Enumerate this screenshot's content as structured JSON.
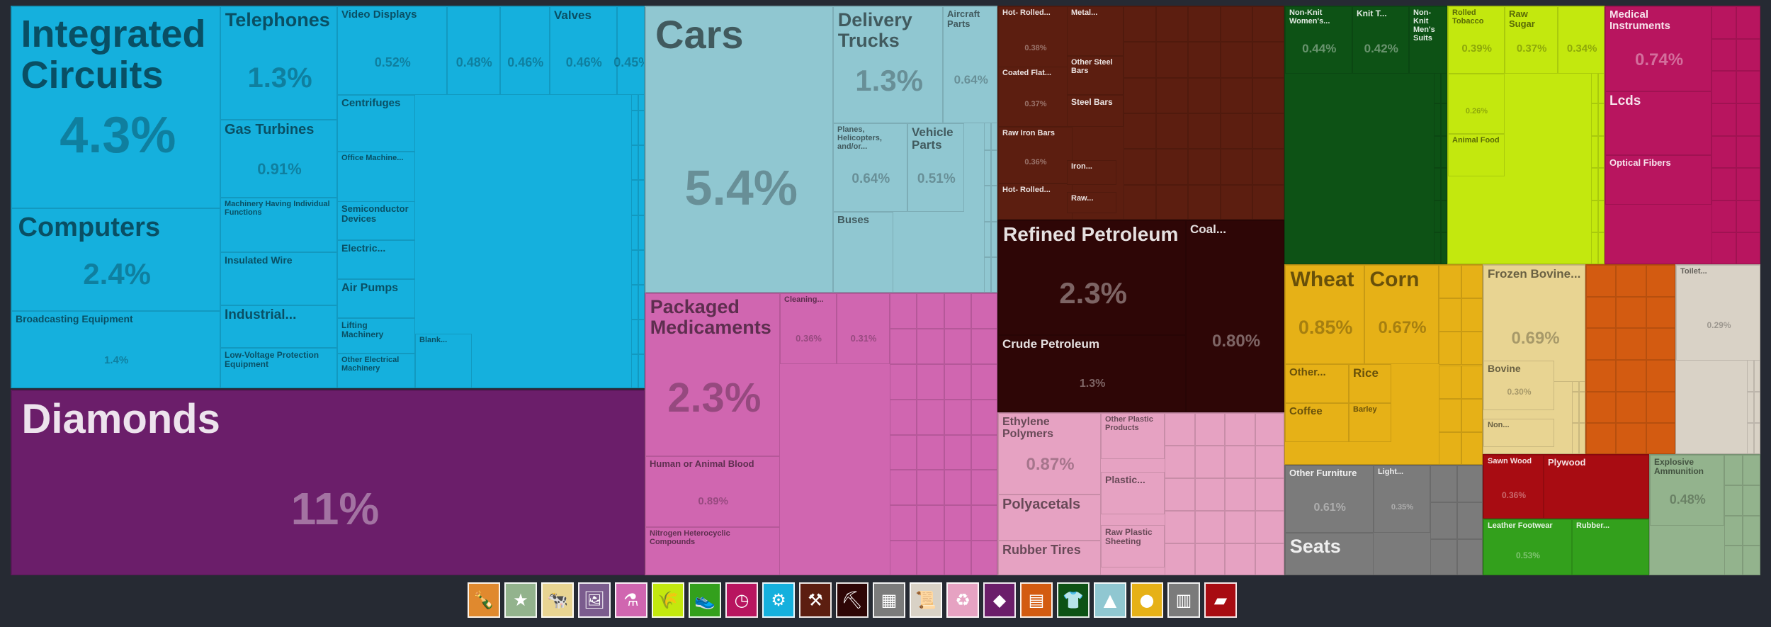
{
  "chart_data": {
    "type": "treemap",
    "sectors": [
      {
        "name": "Machines",
        "color": "#15b0dd",
        "items": [
          {
            "label": "Integrated Circuits",
            "pct": "4.3%"
          },
          {
            "label": "Computers",
            "pct": "2.4%"
          },
          {
            "label": "Broadcasting Equipment",
            "pct": "1.4%"
          },
          {
            "label": "Telephones",
            "pct": "1.3%"
          },
          {
            "label": "Gas Turbines",
            "pct": "0.91%"
          },
          {
            "label": "Machinery Having Individual Functions",
            "pct": ""
          },
          {
            "label": "Insulated Wire",
            "pct": ""
          },
          {
            "label": "Industrial...",
            "pct": ""
          },
          {
            "label": "Low-Voltage Protection Equipment",
            "pct": ""
          },
          {
            "label": "Video Displays",
            "pct": "0.52%"
          },
          {
            "label": "",
            "pct": "0.48%"
          },
          {
            "label": "",
            "pct": "0.46%"
          },
          {
            "label": "Valves",
            "pct": "0.46%"
          },
          {
            "label": "",
            "pct": "0.45%"
          },
          {
            "label": "Centrifuges",
            "pct": ""
          },
          {
            "label": "Office Machine...",
            "pct": ""
          },
          {
            "label": "Semiconductor Devices",
            "pct": ""
          },
          {
            "label": "Electric...",
            "pct": ""
          },
          {
            "label": "Air Pumps",
            "pct": ""
          },
          {
            "label": "Lifting Machinery",
            "pct": ""
          },
          {
            "label": "Other Electrical Machinery",
            "pct": ""
          },
          {
            "label": "Blank...",
            "pct": ""
          }
        ]
      },
      {
        "name": "Precious Metals",
        "color": "#6b1e6a",
        "items": [
          {
            "label": "Diamonds",
            "pct": "11%"
          }
        ]
      },
      {
        "name": "Transportation",
        "color": "#90c7d1",
        "items": [
          {
            "label": "Cars",
            "pct": "5.4%"
          },
          {
            "label": "Delivery Trucks",
            "pct": "1.3%"
          },
          {
            "label": "Aircraft Parts",
            "pct": "0.64%"
          },
          {
            "label": "Planes, Helicopters, and/or...",
            "pct": "0.64%"
          },
          {
            "label": "Vehicle Parts",
            "pct": "0.51%"
          },
          {
            "label": "Buses",
            "pct": ""
          }
        ]
      },
      {
        "name": "Chemical Products",
        "color": "#d066b0",
        "items": [
          {
            "label": "Packaged Medicaments",
            "pct": "2.3%"
          },
          {
            "label": "Cleaning...",
            "pct": "0.36%"
          },
          {
            "label": "",
            "pct": "0.31%"
          },
          {
            "label": "Human or Animal Blood",
            "pct": "0.89%"
          },
          {
            "label": "Nitrogen Heterocyclic Compounds",
            "pct": ""
          }
        ]
      },
      {
        "name": "Metals",
        "color": "#5c1e10",
        "items": [
          {
            "label": "Hot- Rolled...",
            "pct": "0.38%"
          },
          {
            "label": "Metal...",
            "pct": ""
          },
          {
            "label": "Coated Flat...",
            "pct": "0.37%"
          },
          {
            "label": "Other Steel Bars",
            "pct": ""
          },
          {
            "label": "Steel Bars",
            "pct": ""
          },
          {
            "label": "Raw Iron Bars",
            "pct": "0.36%"
          },
          {
            "label": "Hot- Rolled...",
            "pct": ""
          },
          {
            "label": "Iron...",
            "pct": ""
          },
          {
            "label": "Raw...",
            "pct": ""
          }
        ]
      },
      {
        "name": "Mineral Products",
        "color": "#2e0606",
        "items": [
          {
            "label": "Refined Petroleum",
            "pct": "2.3%"
          },
          {
            "label": "Coal...",
            "pct": "0.80%"
          },
          {
            "label": "Crude Petroleum",
            "pct": "1.3%"
          }
        ]
      },
      {
        "name": "Plastics and Rubbers",
        "color": "#e6a2c2",
        "items": [
          {
            "label": "Ethylene Polymers",
            "pct": "0.87%"
          },
          {
            "label": "Other Plastic Products",
            "pct": ""
          },
          {
            "label": "Plastic...",
            "pct": ""
          },
          {
            "label": "Polyacetals",
            "pct": ""
          },
          {
            "label": "Raw Plastic Sheeting",
            "pct": ""
          },
          {
            "label": "Rubber Tires",
            "pct": ""
          }
        ]
      },
      {
        "name": "Textiles",
        "color": "#0d5215",
        "items": [
          {
            "label": "Non-Knit Women's...",
            "pct": "0.44%"
          },
          {
            "label": "Knit T...",
            "pct": "0.42%"
          },
          {
            "label": "Non-Knit Men's Suits",
            "pct": ""
          }
        ]
      },
      {
        "name": "Foodstuffs",
        "color": "#c3e80e",
        "items": [
          {
            "label": "Rolled Tobacco",
            "pct": "0.39%"
          },
          {
            "label": "Raw Sugar",
            "pct": "0.37%"
          },
          {
            "label": "",
            "pct": "0.34%"
          },
          {
            "label": "",
            "pct": "0.26%"
          },
          {
            "label": "Animal Food",
            "pct": ""
          }
        ]
      },
      {
        "name": "Instruments",
        "color": "#b8155f",
        "items": [
          {
            "label": "Medical Instruments",
            "pct": "0.74%"
          },
          {
            "label": "Lcds",
            "pct": ""
          },
          {
            "label": "Optical Fibers",
            "pct": ""
          }
        ]
      },
      {
        "name": "Vegetable Products",
        "color": "#e6b117",
        "items": [
          {
            "label": "Wheat",
            "pct": "0.85%"
          },
          {
            "label": "Corn",
            "pct": "0.67%"
          },
          {
            "label": "Other...",
            "pct": ""
          },
          {
            "label": "Rice",
            "pct": ""
          },
          {
            "label": "Coffee",
            "pct": ""
          },
          {
            "label": "Barley",
            "pct": ""
          }
        ]
      },
      {
        "name": "Animal Products",
        "color": "#e8d492",
        "items": [
          {
            "label": "Frozen Bovine...",
            "pct": "0.69%"
          },
          {
            "label": "Bovine",
            "pct": "0.30%"
          },
          {
            "label": "Non...",
            "pct": ""
          }
        ]
      },
      {
        "name": "Animal and Vegetable Bi-Products",
        "color": "#d35b11",
        "items": []
      },
      {
        "name": "Miscellaneous",
        "color": "#d9d2c6",
        "items": [
          {
            "label": "Toilet...",
            "pct": "0.29%"
          }
        ]
      },
      {
        "name": "Furniture",
        "color": "#7b7b7b",
        "items": [
          {
            "label": "Other Furniture",
            "pct": "0.61%"
          },
          {
            "label": "Light...",
            "pct": "0.35%"
          },
          {
            "label": "Seats",
            "pct": ""
          }
        ]
      },
      {
        "name": "Wood Products",
        "color": "#a80c12",
        "items": [
          {
            "label": "Sawn Wood",
            "pct": "0.36%"
          },
          {
            "label": "Plywood",
            "pct": ""
          }
        ]
      },
      {
        "name": "Footwear and Headwear",
        "color": "#33a01c",
        "items": [
          {
            "label": "Leather Footwear",
            "pct": "0.53%"
          },
          {
            "label": "Rubber...",
            "pct": ""
          }
        ]
      },
      {
        "name": "Arts and Antiques",
        "color": "#93b38d",
        "items": [
          {
            "label": "Explosive Ammunition",
            "pct": "0.48%"
          }
        ]
      }
    ]
  },
  "legend": [
    {
      "name": "bottle-icon",
      "glyph": "🍾",
      "color": "#e0892e"
    },
    {
      "name": "star-badge-icon",
      "glyph": "★",
      "color": "#93b38d"
    },
    {
      "name": "animal-icon",
      "glyph": "🐄",
      "color": "#e8d492"
    },
    {
      "name": "picture-frame-icon",
      "glyph": "🖼",
      "color": "#7b5c8e"
    },
    {
      "name": "flask-icon",
      "glyph": "⚗",
      "color": "#d066b0"
    },
    {
      "name": "wheat-icon",
      "glyph": "🌾",
      "color": "#c3e80e"
    },
    {
      "name": "shoe-icon",
      "glyph": "👟",
      "color": "#33a01c"
    },
    {
      "name": "gauge-icon",
      "glyph": "◷",
      "color": "#b8155f"
    },
    {
      "name": "gears-icon",
      "glyph": "⚙",
      "color": "#15b0dd"
    },
    {
      "name": "anvil-icon",
      "glyph": "⚒",
      "color": "#5c1e10"
    },
    {
      "name": "pickaxe-icon",
      "glyph": "⛏",
      "color": "#2e0606"
    },
    {
      "name": "cube-icon",
      "glyph": "▦",
      "color": "#7b7b7b"
    },
    {
      "name": "scroll-icon",
      "glyph": "📜",
      "color": "#d9d2c6"
    },
    {
      "name": "recycle-icon",
      "glyph": "♻",
      "color": "#e6a2c2"
    },
    {
      "name": "diamond-icon",
      "glyph": "◆",
      "color": "#6b1e6a"
    },
    {
      "name": "wood-icon",
      "glyph": "▤",
      "color": "#d35b11"
    },
    {
      "name": "shirt-icon",
      "glyph": "👕",
      "color": "#0d5215"
    },
    {
      "name": "road-icon",
      "glyph": "▲",
      "color": "#90c7d1"
    },
    {
      "name": "fruit-icon",
      "glyph": "●",
      "color": "#e6b117"
    },
    {
      "name": "furniture-icon",
      "glyph": "▥",
      "color": "#7b7b7b"
    },
    {
      "name": "plank-icon",
      "glyph": "▰",
      "color": "#a80c12"
    }
  ]
}
